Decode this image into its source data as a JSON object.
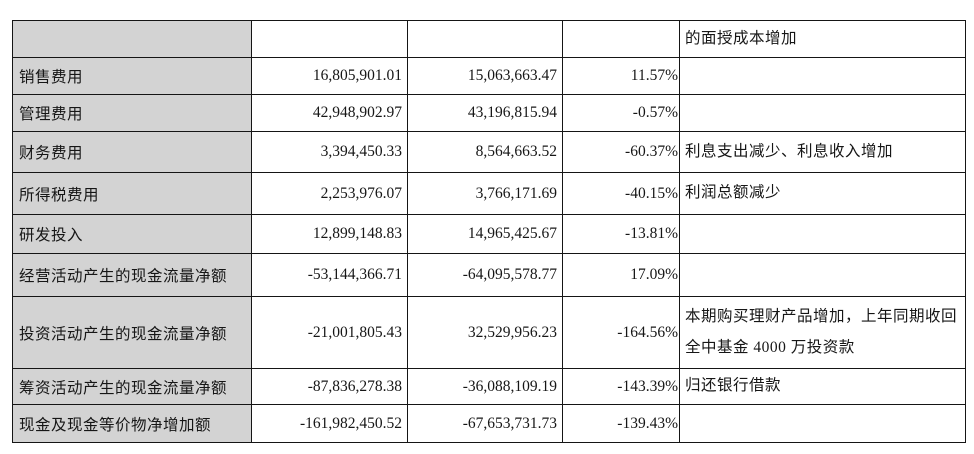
{
  "colors": {
    "label_column_bg": "#d3d3d3",
    "border": "#151515",
    "text": "#161616",
    "page_bg": "#ffffff"
  },
  "table": {
    "column_keys": [
      "label",
      "current",
      "prior",
      "change",
      "remark"
    ],
    "rows": [
      {
        "label": "",
        "current": "",
        "prior": "",
        "change": "",
        "remark": "的面授成本增加"
      },
      {
        "label": "销售费用",
        "current": "16,805,901.01",
        "prior": "15,063,663.47",
        "change": "11.57%",
        "remark": ""
      },
      {
        "label": "管理费用",
        "current": "42,948,902.97",
        "prior": "43,196,815.94",
        "change": "-0.57%",
        "remark": ""
      },
      {
        "label": "财务费用",
        "current": "3,394,450.33",
        "prior": "8,564,663.52",
        "change": "-60.37%",
        "remark": "利息支出减少、利息收入增加"
      },
      {
        "label": "所得税费用",
        "current": "2,253,976.07",
        "prior": "3,766,171.69",
        "change": "-40.15%",
        "remark": "利润总额减少"
      },
      {
        "label": "研发投入",
        "current": "12,899,148.83",
        "prior": "14,965,425.67",
        "change": "-13.81%",
        "remark": ""
      },
      {
        "label": "经营活动产生的现金流量净额",
        "current": "-53,144,366.71",
        "prior": "-64,095,578.77",
        "change": "17.09%",
        "remark": ""
      },
      {
        "label": "投资活动产生的现金流量净额",
        "current": "-21,001,805.43",
        "prior": "32,529,956.23",
        "change": "-164.56%",
        "remark": "本期购买理财产品增加，上年同期收回全中基金 4000 万投资款"
      },
      {
        "label": "筹资活动产生的现金流量净额",
        "current": "-87,836,278.38",
        "prior": "-36,088,109.19",
        "change": "-143.39%",
        "remark": "归还银行借款"
      },
      {
        "label": "现金及现金等价物净增加额",
        "current": "-161,982,450.52",
        "prior": "-67,653,731.73",
        "change": "-139.43%",
        "remark": ""
      }
    ]
  }
}
